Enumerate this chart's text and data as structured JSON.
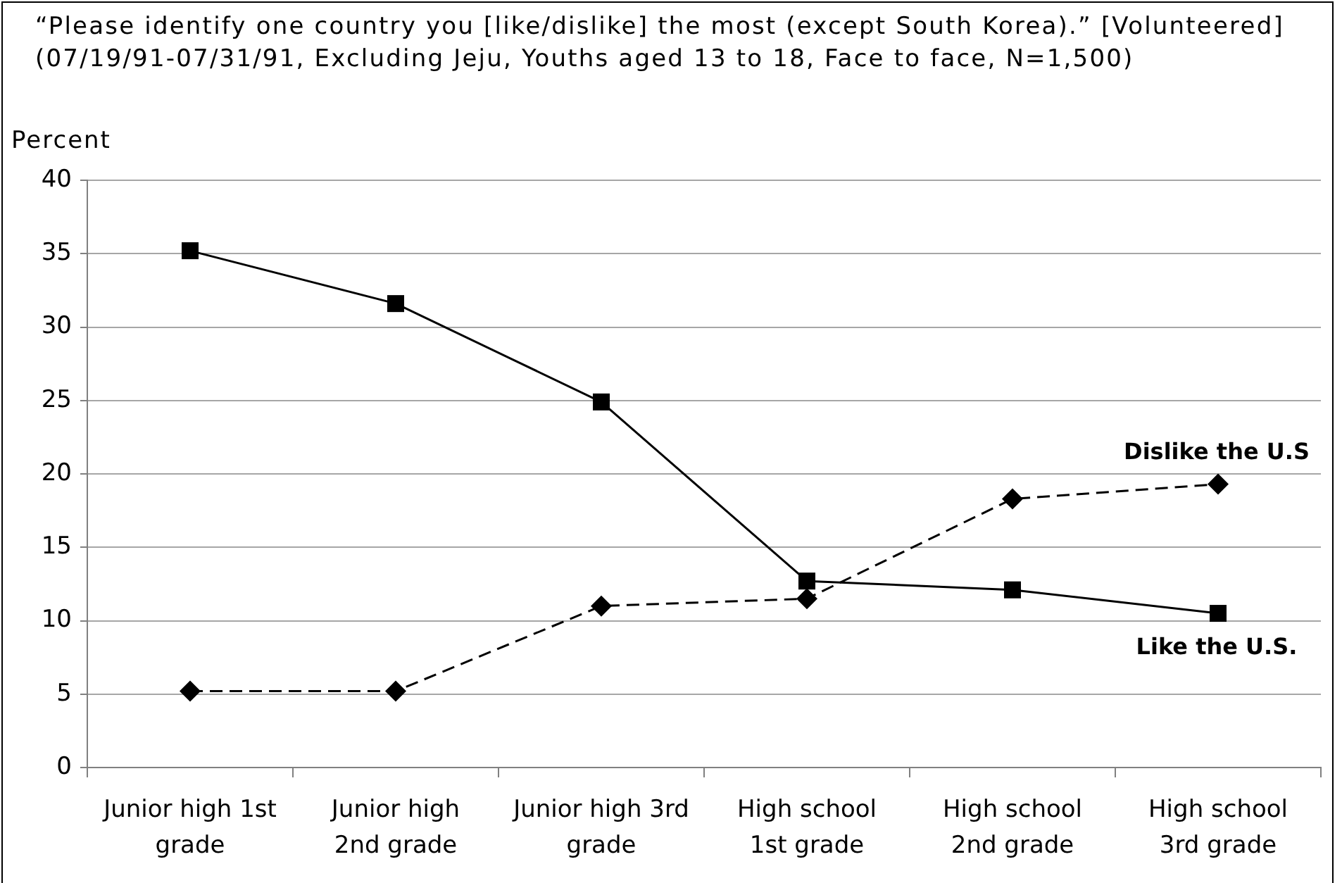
{
  "chart_data": {
    "type": "line",
    "title": "“Please identify one country you [like/dislike] the most (except South Korea).” [Volunteered]",
    "subtitle": "(07/19/91-07/31/91, Excluding Jeju, Youths aged 13 to 18, Face to face, N=1,500)",
    "ylabel": "Percent",
    "categories": [
      "Junior high 1st grade",
      "Junior high 2nd grade",
      "Junior high 3rd grade",
      "High school 1st grade",
      "High school 2nd grade",
      "High school 3rd grade"
    ],
    "series": [
      {
        "name": "Like the U.S.",
        "color": "#000000",
        "values": [
          35.2,
          31.6,
          24.9,
          12.7,
          12.1,
          10.5
        ],
        "marker": "square",
        "line_style": "solid"
      },
      {
        "name": "Dislike the U.S",
        "color": "#000000",
        "values": [
          5.2,
          5.2,
          11.0,
          11.5,
          18.3,
          19.3
        ],
        "marker": "diamond",
        "line_style": "dashed"
      }
    ],
    "ylim": [
      0,
      40
    ],
    "yticks": [
      0,
      5,
      10,
      15,
      20,
      25,
      30,
      35,
      40
    ],
    "grid": "y"
  }
}
